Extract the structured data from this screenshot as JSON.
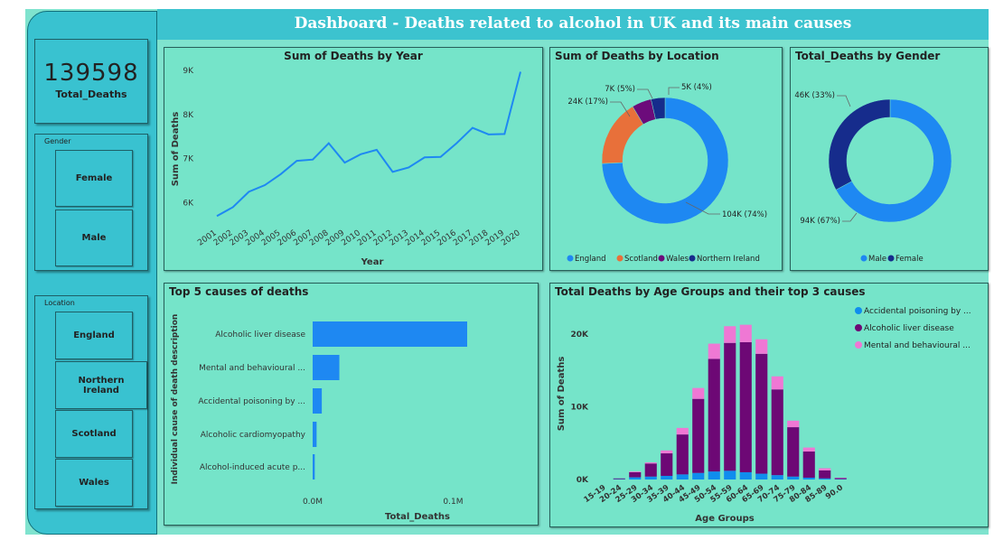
{
  "header": {
    "title": "Dashboard - Deaths related to alcohol in UK and its main causes"
  },
  "kpi": {
    "value": "139598",
    "label": "Total_Deaths"
  },
  "gender_slicer": {
    "title": "Gender",
    "items": [
      "Female",
      "Male"
    ]
  },
  "location_slicer": {
    "title": "Location",
    "items": [
      "England",
      "Northern Ireland",
      "Scotland",
      "Wales"
    ]
  },
  "colors": {
    "primary_blue": "#1e88f2",
    "orange": "#e8703a",
    "purple": "#6c0b7b",
    "navy": "#162c8c",
    "pink": "#ef78d4",
    "blue2": "#0f8dee",
    "dark_purple": "#6d0875"
  },
  "chart_data": [
    {
      "id": "year",
      "type": "line",
      "title": "Sum of Deaths by Year",
      "xlabel": "Year",
      "ylabel": "Sum of Deaths",
      "x": [
        "2001",
        "2002",
        "2003",
        "2004",
        "2005",
        "2006",
        "2007",
        "2008",
        "2009",
        "2010",
        "2011",
        "2012",
        "2013",
        "2014",
        "2015",
        "2016",
        "2017",
        "2018",
        "2019",
        "2020"
      ],
      "values": [
        5700,
        5900,
        6250,
        6400,
        6650,
        6950,
        6980,
        7350,
        6910,
        7100,
        7200,
        6700,
        6800,
        7030,
        7040,
        7350,
        7700,
        7550,
        7560,
        8970
      ],
      "yticks": [
        {
          "v": 6000,
          "t": "6K"
        },
        {
          "v": 7000,
          "t": "7K"
        },
        {
          "v": 8000,
          "t": "8K"
        },
        {
          "v": 9000,
          "t": "9K"
        }
      ],
      "ylim": [
        5500,
        9000
      ],
      "color": "#1e88f2"
    },
    {
      "id": "location",
      "type": "pie",
      "title": "Sum of Deaths by Location",
      "categories": [
        "England",
        "Scotland",
        "Wales",
        "Northern Ireland"
      ],
      "values": [
        104000,
        24000,
        7000,
        5000
      ],
      "labels": [
        "104K (74%)",
        "24K (17%)",
        "7K (5%)",
        "5K (4%)"
      ],
      "colors": [
        "#1e88f2",
        "#e8703a",
        "#6c0b7b",
        "#162c8c"
      ]
    },
    {
      "id": "gender",
      "type": "pie",
      "title": "Total_Deaths by Gender",
      "categories": [
        "Male",
        "Female"
      ],
      "values": [
        94000,
        46000
      ],
      "labels": [
        "94K (67%)",
        "46K (33%)"
      ],
      "colors": [
        "#1e88f2",
        "#162c8c"
      ]
    },
    {
      "id": "causes",
      "type": "bar",
      "title": "Top 5 causes of deaths",
      "xlabel": "Total_Deaths",
      "ylabel": "Individual cause of death description",
      "categories": [
        "Alcoholic liver disease",
        "Mental and behavioural ...",
        "Accidental poisoning by ...",
        "Alcoholic cardiomyopathy",
        "Alcohol-induced acute p..."
      ],
      "values": [
        110000,
        19000,
        6500,
        2800,
        1500
      ],
      "xticks": [
        {
          "v": 0,
          "t": "0.0M"
        },
        {
          "v": 100000,
          "t": "0.1M"
        }
      ],
      "xlim": [
        0,
        110000
      ],
      "color": "#1e88f2"
    },
    {
      "id": "age",
      "type": "bar",
      "stacked": true,
      "title": "Total Deaths by Age Groups and their top 3 causes",
      "xlabel": "Age Groups",
      "ylabel": "Sum of Deaths",
      "categories": [
        "15-19",
        "20-24",
        "25-29",
        "30-34",
        "35-39",
        "40-44",
        "45-49",
        "50-54",
        "55-59",
        "60-64",
        "65-69",
        "70-74",
        "75-79",
        "80-84",
        "85-89",
        "90.0"
      ],
      "series": [
        {
          "name": "Accidental poisoning by ...",
          "color": "#0f8dee",
          "values": [
            0,
            50,
            300,
            400,
            500,
            700,
            900,
            1100,
            1200,
            1000,
            800,
            600,
            400,
            250,
            150,
            50
          ]
        },
        {
          "name": "Alcoholic liver disease",
          "color": "#6d0875",
          "values": [
            0,
            100,
            700,
            1800,
            3100,
            5500,
            10200,
            15500,
            17600,
            17900,
            16500,
            11800,
            6800,
            3600,
            1100,
            150
          ]
        },
        {
          "name": "Mental and behavioural ...",
          "color": "#ef78d4",
          "values": [
            0,
            0,
            100,
            150,
            400,
            900,
            1500,
            2100,
            2300,
            2400,
            2000,
            1800,
            900,
            550,
            300,
            50
          ]
        }
      ],
      "yticks": [
        {
          "v": 0,
          "t": "0K"
        },
        {
          "v": 10000,
          "t": "10K"
        },
        {
          "v": 20000,
          "t": "20K"
        }
      ],
      "ylim": [
        0,
        22000
      ]
    }
  ]
}
